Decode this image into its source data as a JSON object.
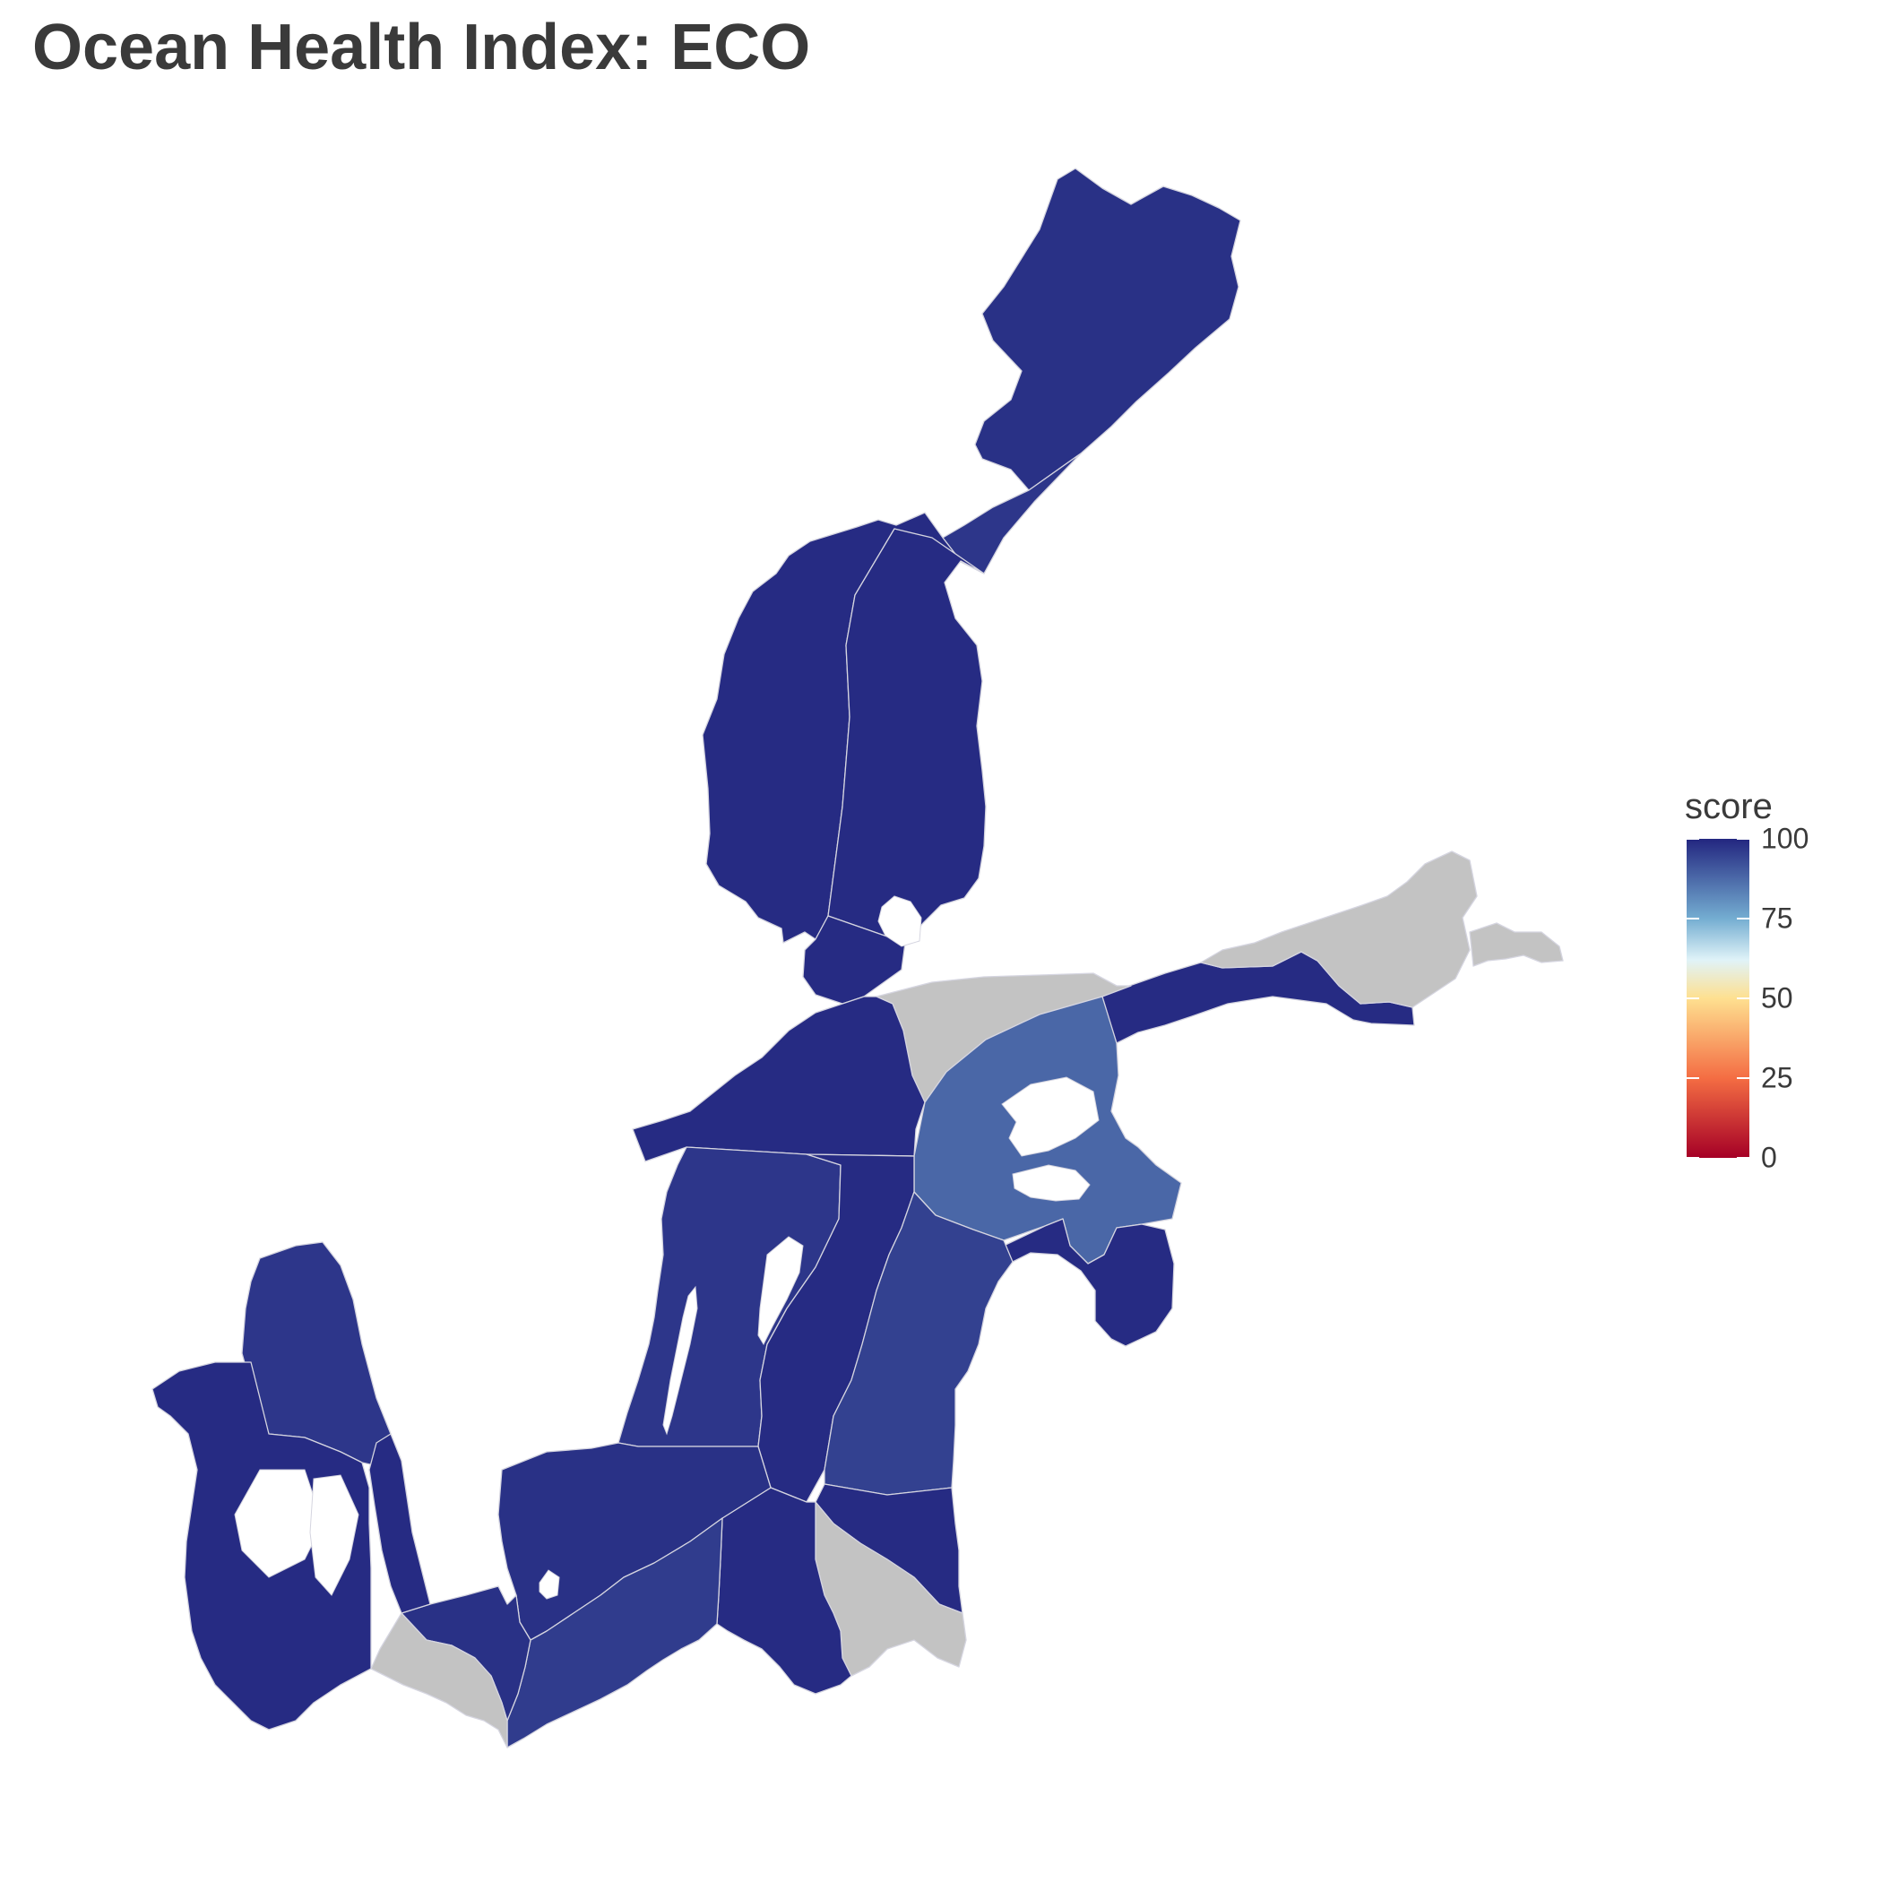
{
  "title": "Ocean Health Index: ECO",
  "legend": {
    "title": "score",
    "ticks": [
      "100",
      "75",
      "50",
      "25",
      "0"
    ],
    "tick_values": [
      100,
      75,
      50,
      25,
      0
    ],
    "colors": {
      "0": "#a50026",
      "25": "#f46d43",
      "50": "#fee090",
      "62": "#e0f3f8",
      "75": "#74add1",
      "100": "#232680"
    },
    "no_data_color": "#c3c3c3"
  },
  "map": {
    "subject": "Baltic Sea basins",
    "regions": [
      {
        "id": "bothnian-bay-north",
        "score": 98
      },
      {
        "id": "bothnian-bay-south",
        "score": 97
      },
      {
        "id": "bothnian-sea-west",
        "score": 99
      },
      {
        "id": "bothnian-sea-east",
        "score": 99
      },
      {
        "id": "aland-sea",
        "score": 99
      },
      {
        "id": "gulf-of-finland-finnish",
        "score": 99
      },
      {
        "id": "gulf-of-finland-russian",
        "score": null
      },
      {
        "id": "northern-baltic-proper-west",
        "score": 99
      },
      {
        "id": "northern-baltic-proper-finnish",
        "score": null
      },
      {
        "id": "estonian-waters",
        "score": 88
      },
      {
        "id": "gulf-of-riga",
        "score": 99
      },
      {
        "id": "western-gotland-basin",
        "score": 97
      },
      {
        "id": "eastern-gotland-basin-west",
        "score": 99
      },
      {
        "id": "eastern-gotland-basin-latvia-lithuania",
        "score": 95
      },
      {
        "id": "eastern-gotland-basin-south",
        "score": 99
      },
      {
        "id": "gdansk-basin",
        "score": 99
      },
      {
        "id": "kaliningrad-waters",
        "score": null
      },
      {
        "id": "bornholm-basin-west",
        "score": 98
      },
      {
        "id": "bornholm-basin-poland",
        "score": 96
      },
      {
        "id": "arkona-basin",
        "score": 98
      },
      {
        "id": "german-waters",
        "score": null
      },
      {
        "id": "kattegat",
        "score": 97
      },
      {
        "id": "the-sound",
        "score": 99
      },
      {
        "id": "great-belt-and-kiel-bay",
        "score": 99
      }
    ]
  }
}
